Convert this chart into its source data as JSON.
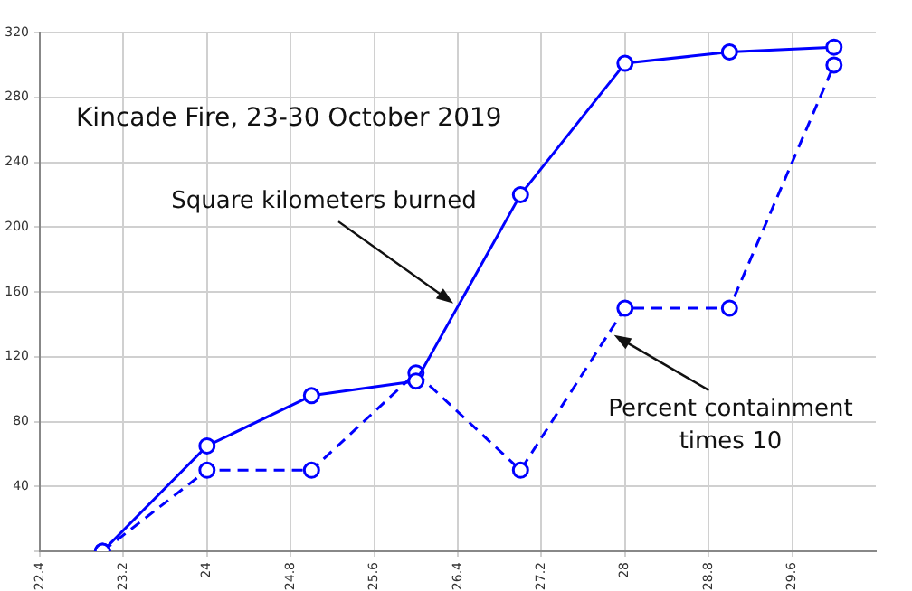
{
  "chart_data": {
    "type": "line",
    "title": "Kincade Fire, 23-30 October 2019",
    "x": [
      23,
      24,
      25,
      26,
      27,
      28,
      29,
      30
    ],
    "series": [
      {
        "name": "Square kilometers burned",
        "color": "#0000ff",
        "line_style": "solid",
        "values": [
          0,
          65,
          96,
          105,
          220,
          301,
          308,
          311
        ]
      },
      {
        "name": "Percent containment times 10",
        "color": "#0000ff",
        "line_style": "dashed",
        "values": [
          0,
          50,
          50,
          110,
          50,
          150,
          150,
          300
        ]
      }
    ],
    "xlim": [
      22.4,
      30.4
    ],
    "xticks": [
      22.4,
      23.2,
      24,
      24.8,
      25.6,
      26.4,
      27.2,
      28,
      28.8,
      29.6
    ],
    "ylim": [
      0,
      320
    ],
    "yticks": [
      {
        "value": 0,
        "label": null
      },
      40,
      80,
      120,
      160,
      200,
      240,
      280,
      320
    ],
    "grid": true,
    "legend": false,
    "marker": "circle"
  }
}
